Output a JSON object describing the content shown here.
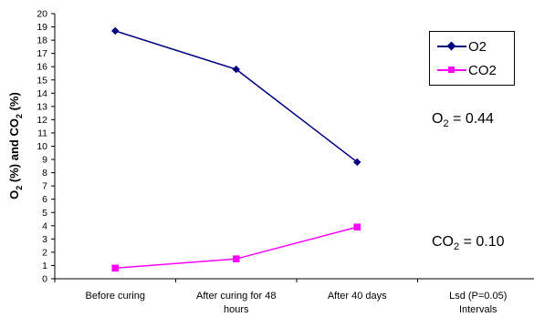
{
  "chart_data": {
    "type": "line",
    "categories": [
      "Before curing",
      "After curing for 48 hours",
      "After 40 days",
      "Lsd (P=0.05) Intervals"
    ],
    "category_lines": [
      [
        "Before curing"
      ],
      [
        "After curing for 48",
        "hours"
      ],
      [
        "After 40 days"
      ],
      [
        "Lsd (P=0.05)",
        "Intervals"
      ]
    ],
    "series": [
      {
        "name": "O2",
        "values": [
          18.7,
          15.8,
          8.8,
          null
        ],
        "color": "#000080",
        "marker": "diamond"
      },
      {
        "name": "CO2",
        "values": [
          0.8,
          1.5,
          3.9,
          null
        ],
        "color": "#ff00ff",
        "marker": "square"
      }
    ],
    "ylabel": {
      "main_1": "O",
      "sub_1": "2",
      "main_2": " (%) and CO",
      "sub_2": "2",
      "main_3": " (%)"
    },
    "ylim": [
      0,
      20
    ],
    "yticks": [
      0,
      1,
      2,
      3,
      4,
      5,
      6,
      7,
      8,
      9,
      10,
      11,
      12,
      13,
      14,
      15,
      16,
      17,
      18,
      19,
      20
    ],
    "grid": false,
    "legend_position": "top-right",
    "annotations": {
      "o2": {
        "main": "O",
        "sub": "2",
        "rest": " = 0.44"
      },
      "co2": {
        "main": "CO",
        "sub": "2",
        "rest": " = 0.10"
      }
    }
  }
}
